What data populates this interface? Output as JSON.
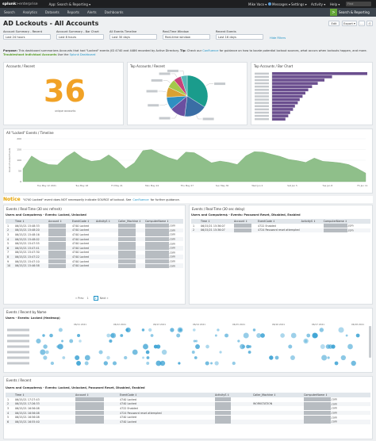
{
  "topbar": {
    "logo_a": "splunk",
    "logo_b": ">enterprise",
    "app_menu": "App: Search & Reporting ▾",
    "user": "Mike Vaco ▾",
    "messages": "Messages ▾",
    "settings": "Settings ▾",
    "activity": "Activity ▾",
    "help": "Help ▾",
    "find": "Find"
  },
  "nav": {
    "items": [
      "Search",
      "Analytics",
      "Datasets",
      "Reports",
      "Alerts",
      "Dashboards"
    ],
    "app_badge": "Search & Reporting",
    "app_icon": ">"
  },
  "page": {
    "title": "AD Lockouts - All Accounts",
    "edit": "Edit",
    "export": "Export ▾",
    "more": "...",
    "print": "⎙"
  },
  "inputs": [
    {
      "label": "Account Summary - Recent",
      "value": "Last 24 hours"
    },
    {
      "label": "Account Summary - Bar Chart",
      "value": "Last 8 hours"
    },
    {
      "label": "All Events Timeline",
      "value": "Last 30 days"
    },
    {
      "label": "Real-Time Window",
      "value": "Real-time window"
    },
    {
      "label": "Recent Events",
      "value": "Last 16 days"
    }
  ],
  "hide_filters": "Hide Filters",
  "purpose": {
    "label": "Purpose:",
    "text": "This dashboard summarizes Accounts that had \"Locked\" events (ID 4740 and 4486 recorded by Active Directory.",
    "tip_label": "Tip:",
    "tip_text": "Check our",
    "link1": "Confluence",
    "tip_rest": "for guidance on how to locate potential lockout sources, what occurs when lockouts happen, and more.",
    "troubleshoot": "Troubleshoot Individual Accounts",
    "use": "Use the",
    "link2": "Splunk Dashboard"
  },
  "panels": {
    "recent": {
      "title": "Accounts / Recent",
      "value": "36",
      "sub": "unique accounts"
    },
    "pie": {
      "title": "Top Accounts / Recent"
    },
    "bar": {
      "title": "Top Accounts / Bar Chart"
    },
    "timeline": {
      "title": "All \"Locked\" Events / Timeline"
    }
  },
  "pie_slices": [
    {
      "value": 34,
      "color": "#1a9c8c"
    },
    {
      "value": 18,
      "color": "#3a6ea5"
    },
    {
      "value": 12,
      "color": "#6b4fa0"
    },
    {
      "value": 10,
      "color": "#2f8fc2"
    },
    {
      "value": 8,
      "color": "#d9a133"
    },
    {
      "value": 7,
      "color": "#a4c94b"
    },
    {
      "value": 6,
      "color": "#c8427a"
    },
    {
      "value": 5,
      "color": "#58b9b8"
    }
  ],
  "bar_values": [
    100,
    63,
    55,
    48,
    42,
    38,
    35,
    32,
    29,
    27,
    24,
    22,
    19,
    17,
    14
  ],
  "bar_color": "#6b4f8f",
  "timeline": {
    "color": "#8fbf8a",
    "ylabel": "Count of Locked Events",
    "yticks": [
      "200",
      "150",
      "100",
      "50",
      "0"
    ],
    "xticks": [
      "Tue May 12 2021",
      "Tue May 18",
      "Fri May 21",
      "Mon May 24",
      "Thu May 27",
      "Sun May 30",
      "Wed Jun 2",
      "Sat Jun 5",
      "Tue Jun 8",
      "Fri Jun 11"
    ],
    "ylim": [
      0,
      200
    ],
    "values": [
      60,
      120,
      95,
      80,
      78,
      115,
      140,
      110,
      95,
      100,
      125,
      98,
      60,
      88,
      145,
      150,
      130,
      112,
      100,
      138,
      135,
      112,
      88,
      96,
      90,
      80,
      120,
      140,
      138,
      128,
      118,
      104,
      98,
      90,
      110,
      95,
      92,
      88,
      80,
      62,
      40
    ]
  },
  "notice": {
    "label": "Notice",
    "text": "\"4740 Locked\" event does NOT necessarily indicate SOURCE of lockout. See",
    "link": "Confluence",
    "rest": "for further guidance."
  },
  "rt_left": {
    "title": "Events / Real-Time (30 sec refresh)",
    "sub": "Users and Computers$ - Events: Locked, Unlocked",
    "cols": [
      "",
      "Time ↕",
      "Account ↕",
      "EventCode ↕",
      "ActivityS ↕",
      "Caller_Machine ↕",
      "ComputerName ↕"
    ],
    "rows": [
      {
        "n": "1",
        "time": "06/15/21 15:48:33",
        "code": "4740 Locked",
        "comp": ".com"
      },
      {
        "n": "2",
        "time": "06/15/21 15:48:20",
        "code": "4740 Locked",
        "comp": ".com"
      },
      {
        "n": "3",
        "time": "06/15/21 15:48:16",
        "code": "4740 Locked",
        "comp": ".com"
      },
      {
        "n": "4",
        "time": "06/15/21 15:48:02",
        "code": "4740 Locked",
        "comp": ".com"
      },
      {
        "n": "5",
        "time": "06/15/21 15:47:55",
        "code": "4740 Locked",
        "comp": ".com"
      },
      {
        "n": "6",
        "time": "06/15/21 15:47:41",
        "code": "4740 Locked",
        "comp": ".com"
      },
      {
        "n": "7",
        "time": "06/15/21 15:47:30",
        "code": "4740 Locked",
        "comp": ".com"
      },
      {
        "n": "8",
        "time": "06/15/21 15:47:22",
        "code": "4740 Locked",
        "comp": ".com"
      },
      {
        "n": "9",
        "time": "06/15/21 15:47:10",
        "code": "4740 Locked",
        "comp": ".com"
      },
      {
        "n": "10",
        "time": "06/15/21 15:46:58",
        "code": "4740 Locked",
        "comp": ".com"
      }
    ],
    "pager": {
      "prev": "« Prev",
      "pages": [
        "1",
        "2"
      ],
      "next": "Next »"
    }
  },
  "rt_right": {
    "title": "Events / Real-Time (30 sec delay)",
    "sub": "Users and Computers$ - Events: Password Reset, Disabled, Enabled",
    "cols": [
      "",
      "Time ↕",
      "Account ↕",
      "EventCode ↕",
      "ActivityS ↕",
      "ComputerName ↕"
    ],
    "rows": [
      {
        "n": "1",
        "time": "06/15/21 15:36:07",
        "code": "4722 Enabled",
        "comp": ".com"
      },
      {
        "n": "2",
        "time": "06/15/21 15:36:07",
        "code": "4724 Password reset attempted",
        "comp": ".com"
      }
    ]
  },
  "heatmap": {
    "title": "Events / Recent by Name",
    "sub": "Users - Events: Locked (Heatmap)",
    "ticks": [
      "06/11 2021",
      "06/12 2021",
      "06/13 2021",
      "06/14 2021",
      "06/15 2021",
      "06/16 2021",
      "06/17 2021",
      "06/18 2021"
    ],
    "color": "#3ea3d4"
  },
  "recent": {
    "title": "Events / Recent",
    "sub": "Users and Computers$ - Events: Locked, Unlocked, Password Reset, Disabled, Enabled",
    "cols": [
      "",
      "Time ↕",
      "Account ↕",
      "EventCode ↕",
      "ActivityS ↕",
      "Caller_Machine ↕",
      "ComputerName ↕"
    ],
    "rows": [
      {
        "n": "1",
        "time": "06/15/21 17:27:43",
        "code": "4740 Locked",
        "caller": "",
        "comp": ".com"
      },
      {
        "n": "2",
        "time": "06/15/21 17:26:33",
        "code": "4740 Locked",
        "caller": "WORKSTATION",
        "comp": ".com"
      },
      {
        "n": "3",
        "time": "06/15/21 16:56:08",
        "code": "4722 Enabled",
        "caller": "",
        "comp": ".com"
      },
      {
        "n": "4",
        "time": "06/15/21 16:56:08",
        "code": "4724 Password reset attempted",
        "caller": "",
        "comp": ".com"
      },
      {
        "n": "5",
        "time": "06/15/21 16:56:08",
        "code": "4740 Locked",
        "caller": "",
        "comp": ".com"
      },
      {
        "n": "6",
        "time": "06/15/21 16:55:40",
        "code": "4740 Locked",
        "caller": "",
        "comp": ".com"
      }
    ]
  }
}
